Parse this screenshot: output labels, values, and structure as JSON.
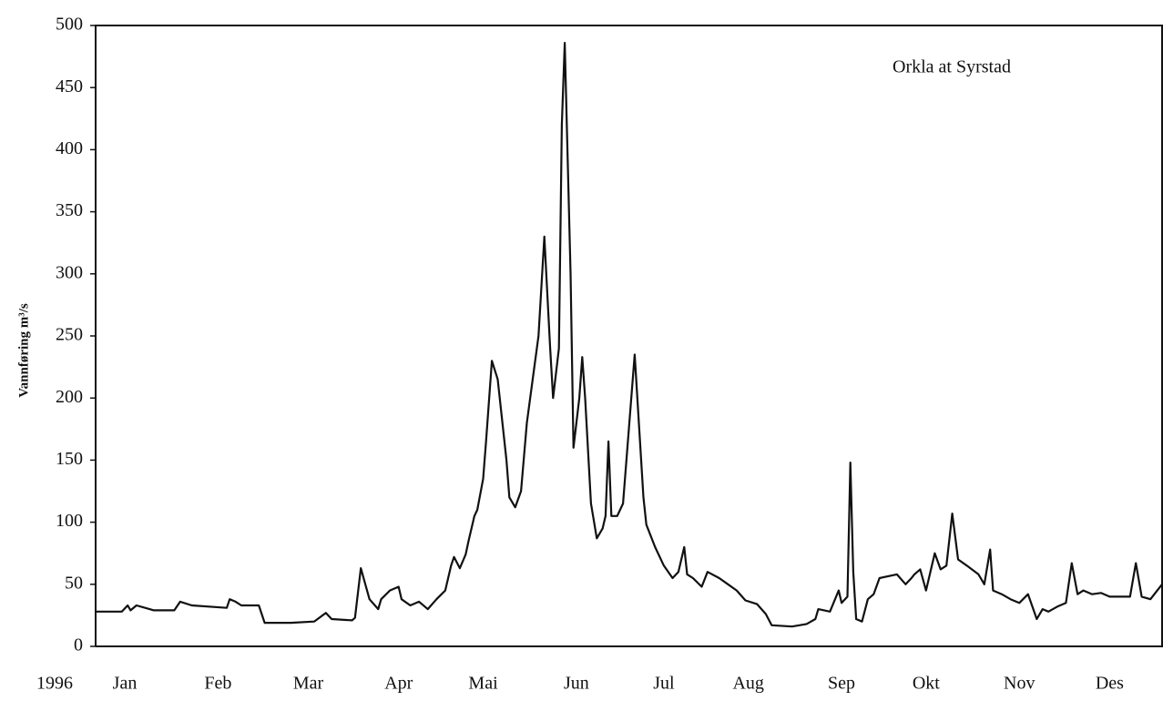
{
  "chart_data": {
    "type": "line",
    "annotation": "Orkla at Syrstad",
    "y_label": "Vannføring  m³/s",
    "x_label": "1996",
    "color": "#111111",
    "x": [
      0,
      9,
      11,
      12,
      14,
      17,
      20,
      27,
      29,
      33,
      45,
      46,
      48,
      50,
      56,
      58,
      67,
      75,
      79,
      81,
      88,
      89,
      91,
      94,
      97,
      98,
      101,
      104,
      105,
      108,
      111,
      114,
      117,
      120,
      122,
      123,
      125,
      127,
      128,
      130,
      131,
      133,
      134,
      136,
      138,
      141,
      142,
      144,
      146,
      148,
      150,
      152,
      154,
      156,
      157,
      159,
      160,
      161,
      163,
      164,
      166,
      167,
      168,
      170,
      172,
      174,
      175,
      176,
      177,
      179,
      181,
      183,
      185,
      188,
      189,
      192,
      195,
      198,
      200,
      202,
      203,
      205,
      208,
      210,
      214,
      217,
      220,
      223,
      227,
      230,
      232,
      239,
      244,
      247,
      248,
      252,
      255,
      256,
      258,
      259,
      260,
      261,
      263,
      265,
      267,
      269,
      275,
      278,
      280,
      281,
      283,
      285,
      288,
      290,
      292,
      294,
      296,
      299,
      303,
      305,
      307,
      308,
      311,
      314,
      317,
      320,
      323,
      325,
      327,
      330,
      333,
      335,
      337,
      339,
      342,
      345,
      348,
      355,
      357,
      359,
      362,
      366
    ],
    "values": [
      28,
      28,
      33,
      29,
      33,
      31,
      29,
      29,
      36,
      33,
      31,
      38,
      36,
      33,
      33,
      19,
      19,
      20,
      27,
      22,
      21,
      23,
      63,
      38,
      30,
      38,
      45,
      48,
      38,
      33,
      36,
      30,
      38,
      45,
      65,
      72,
      63,
      74,
      85,
      105,
      110,
      135,
      165,
      230,
      215,
      150,
      120,
      112,
      125,
      180,
      215,
      250,
      330,
      240,
      200,
      240,
      420,
      486,
      300,
      160,
      200,
      233,
      200,
      115,
      87,
      95,
      105,
      165,
      105,
      105,
      115,
      175,
      235,
      120,
      98,
      80,
      65,
      55,
      60,
      80,
      58,
      55,
      48,
      60,
      55,
      50,
      45,
      37,
      34,
      26,
      17,
      16,
      18,
      22,
      30,
      28,
      45,
      35,
      40,
      148,
      60,
      22,
      20,
      38,
      42,
      55,
      58,
      50,
      55,
      58,
      62,
      45,
      75,
      62,
      65,
      107,
      70,
      65,
      58,
      50,
      78,
      45,
      42,
      38,
      35,
      42,
      22,
      30,
      28,
      32,
      35,
      67,
      42,
      45,
      42,
      43,
      40,
      40,
      67,
      40,
      38,
      50
    ],
    "xlim": [
      0,
      366
    ],
    "xticks": [
      {
        "value": 10,
        "label": "Jan"
      },
      {
        "value": 42,
        "label": "Feb"
      },
      {
        "value": 73,
        "label": "Mar"
      },
      {
        "value": 104,
        "label": "Apr"
      },
      {
        "value": 133,
        "label": "Mai"
      },
      {
        "value": 165,
        "label": "Jun"
      },
      {
        "value": 195,
        "label": "Jul"
      },
      {
        "value": 224,
        "label": "Aug"
      },
      {
        "value": 256,
        "label": "Sep"
      },
      {
        "value": 285,
        "label": "Okt"
      },
      {
        "value": 317,
        "label": "Nov"
      },
      {
        "value": 348,
        "label": "Des"
      }
    ],
    "ylim": [
      0,
      500
    ],
    "yticks": [
      0,
      50,
      100,
      150,
      200,
      250,
      300,
      350,
      400,
      450,
      500
    ],
    "grid": false
  }
}
